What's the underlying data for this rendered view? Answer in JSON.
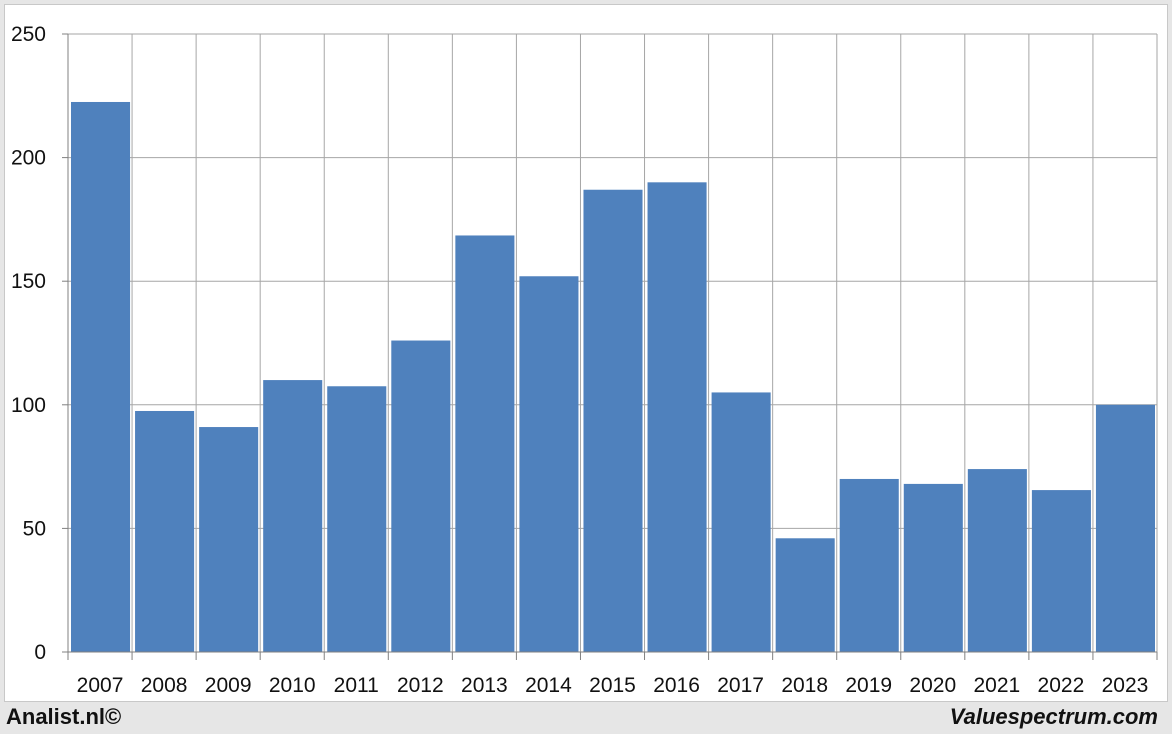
{
  "chart_data": {
    "type": "bar",
    "categories": [
      "2007",
      "2008",
      "2009",
      "2010",
      "2011",
      "2012",
      "2013",
      "2014",
      "2015",
      "2016",
      "2017",
      "2018",
      "2019",
      "2020",
      "2021",
      "2022",
      "2023"
    ],
    "values": [
      222.5,
      97.5,
      91,
      110,
      107.5,
      126,
      168.5,
      152,
      187,
      190,
      105,
      46,
      70,
      68,
      74,
      65.5,
      100
    ],
    "title": "",
    "xlabel": "",
    "ylabel": "",
    "ylim": [
      0,
      250
    ],
    "yticks": [
      0,
      50,
      100,
      150,
      200,
      250
    ],
    "grid": true,
    "bar_color": "#4f81bd",
    "grid_color": "#a6a6a6"
  },
  "footer": {
    "left": "Analist.nl©",
    "right": "Valuespectrum.com"
  }
}
